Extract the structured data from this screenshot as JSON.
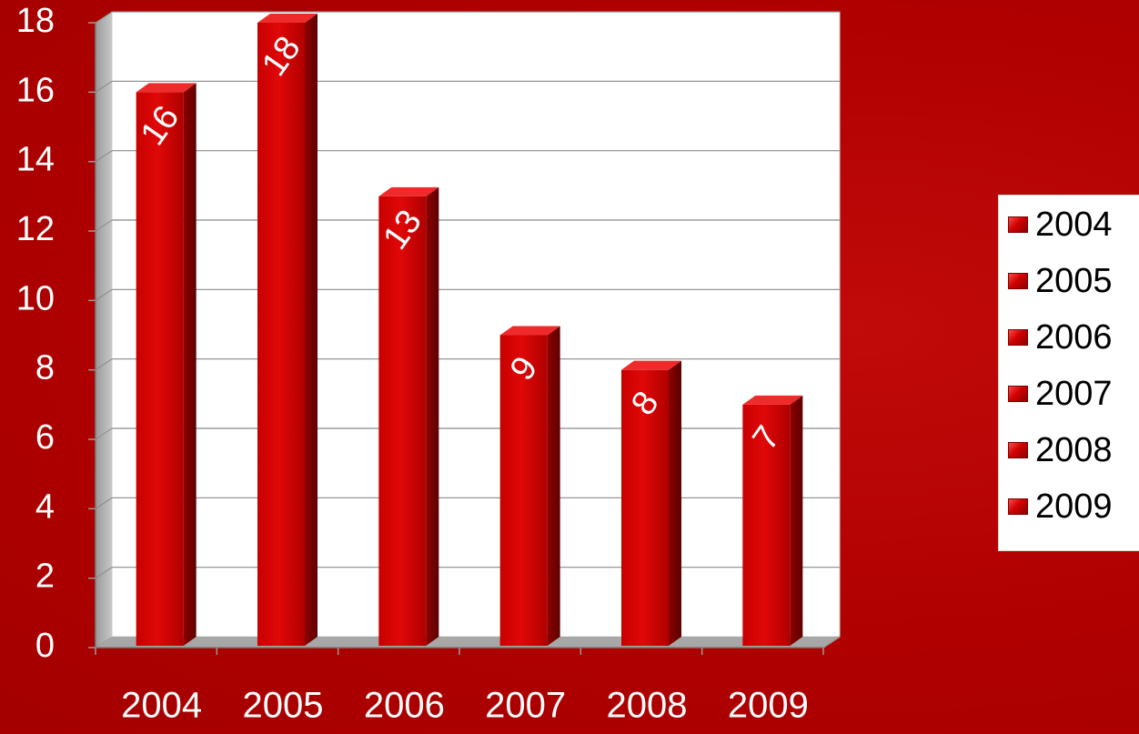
{
  "chart_data": {
    "type": "bar",
    "categories": [
      "2004",
      "2005",
      "2006",
      "2007",
      "2008",
      "2009"
    ],
    "values": [
      16,
      18,
      13,
      9,
      8,
      7
    ],
    "ylim": [
      0,
      18
    ],
    "yticks": [
      "0",
      "2",
      "4",
      "6",
      "8",
      "10",
      "12",
      "14",
      "16",
      "18"
    ],
    "data_labels": [
      "16",
      "18",
      "13",
      "9",
      "8",
      "7"
    ],
    "grid": true,
    "legend_position": "right",
    "legend": [
      "2004",
      "2005",
      "2006",
      "2007",
      "2008",
      "2009"
    ],
    "style": "3d-column",
    "colors": {
      "bar": "#d40000",
      "bar_side": "#8a0000",
      "bar_top": "#ef2a2a",
      "background": "#b00000",
      "plot_wall": "#ffffff",
      "axis_text": "#ffffff"
    }
  }
}
